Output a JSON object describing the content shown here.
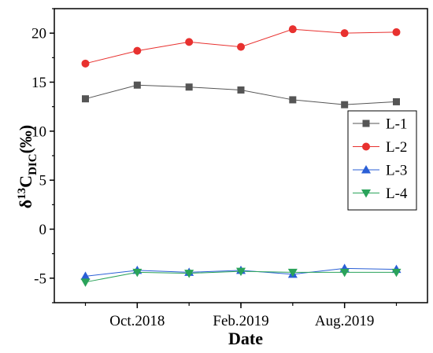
{
  "chart_data": {
    "type": "line",
    "xlabel": "Date",
    "ylabel": {
      "main": "δ",
      "sup": "13",
      "c": "C",
      "sub": "DIC",
      "unit": "(‰)"
    },
    "x_tick_labels": [
      "Oct.2018",
      "Feb.2019",
      "Aug.2019"
    ],
    "x_tick_positions": [
      2,
      4,
      6
    ],
    "xlim": [
      0.4,
      7.6
    ],
    "ylim": [
      -7.5,
      22.5
    ],
    "y_ticks": [
      -5,
      0,
      5,
      10,
      15,
      20
    ],
    "x": [
      1,
      2,
      3,
      4,
      5,
      6,
      7
    ],
    "legend_position": "right",
    "grid": false,
    "series": [
      {
        "name": "L-1",
        "color": "#555555",
        "marker": "square",
        "values": [
          13.3,
          14.7,
          14.5,
          14.2,
          13.2,
          12.7,
          13.0
        ]
      },
      {
        "name": "L-2",
        "color": "#e8312f",
        "marker": "circle",
        "values": [
          16.9,
          18.2,
          19.1,
          18.6,
          20.4,
          20.0,
          20.1
        ]
      },
      {
        "name": "L-3",
        "color": "#2a5fd6",
        "marker": "triangle-up",
        "values": [
          -4.8,
          -4.2,
          -4.4,
          -4.2,
          -4.6,
          -4.0,
          -4.1
        ]
      },
      {
        "name": "L-4",
        "color": "#2aa35a",
        "marker": "triangle-down",
        "values": [
          -5.4,
          -4.4,
          -4.5,
          -4.3,
          -4.4,
          -4.4,
          -4.4
        ]
      }
    ]
  }
}
